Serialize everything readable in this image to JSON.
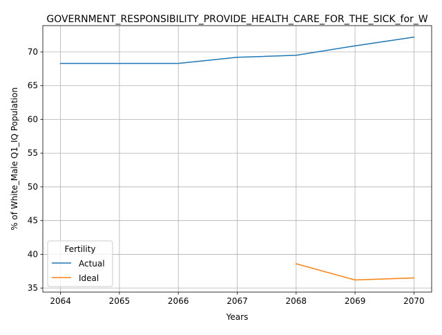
{
  "chart_data": {
    "type": "line",
    "title": "GOVERNMENT_RESPONSIBILITY_PROVIDE_HEALTH_CARE_FOR_THE_SICK_for_W",
    "xlabel": "Years",
    "ylabel": "% of White_Male Q1_IQ Population",
    "x": [
      2064,
      2065,
      2066,
      2067,
      2068,
      2069,
      2070
    ],
    "xlim": [
      2063.7,
      2070.3
    ],
    "ylim": [
      34.4,
      73.9
    ],
    "yticks": [
      35,
      40,
      45,
      50,
      55,
      60,
      65,
      70
    ],
    "grid": true,
    "legend": {
      "title": "Fertility",
      "placement": "lower-left"
    },
    "series": [
      {
        "name": "Actual",
        "color": "#1f77b4",
        "values": [
          68.3,
          68.3,
          68.3,
          69.2,
          69.5,
          70.9,
          72.2
        ]
      },
      {
        "name": "Ideal",
        "color": "#ff7f0e",
        "values": [
          null,
          null,
          null,
          null,
          38.6,
          36.2,
          36.5
        ]
      }
    ]
  }
}
